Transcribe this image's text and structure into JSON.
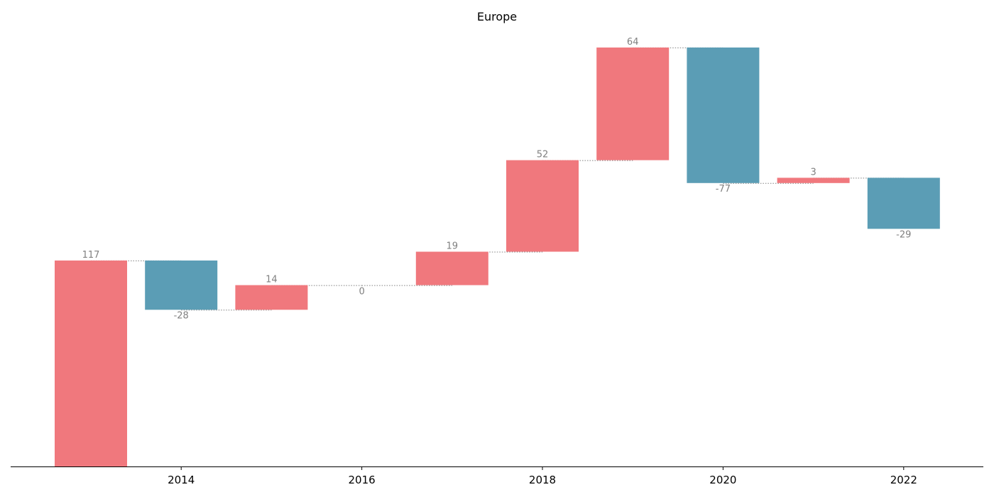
{
  "chart_data": {
    "type": "bar",
    "subtype": "waterfall",
    "title": "Europe",
    "xlabel": "",
    "ylabel": "",
    "x": [
      2013,
      2014,
      2015,
      2016,
      2017,
      2018,
      2019,
      2020,
      2021,
      2022
    ],
    "values": [
      117,
      -28,
      14,
      0,
      19,
      52,
      64,
      -77,
      3,
      -29
    ],
    "value_labels": [
      "117",
      "-28",
      "14",
      "0",
      "19",
      "52",
      "64",
      "-77",
      "3",
      "-29"
    ],
    "x_ticks": [
      2014,
      2016,
      2018,
      2020,
      2022
    ],
    "x_tick_labels": [
      "2014",
      "2016",
      "2018",
      "2020",
      "2022"
    ],
    "ylim": [
      0,
      242
    ],
    "y_axis_visible": false,
    "grid": false,
    "legend": "none",
    "colors": {
      "increase": "#f0787d",
      "decrease": "#5b9db5",
      "connector": "#808080",
      "label": "#808080"
    }
  }
}
